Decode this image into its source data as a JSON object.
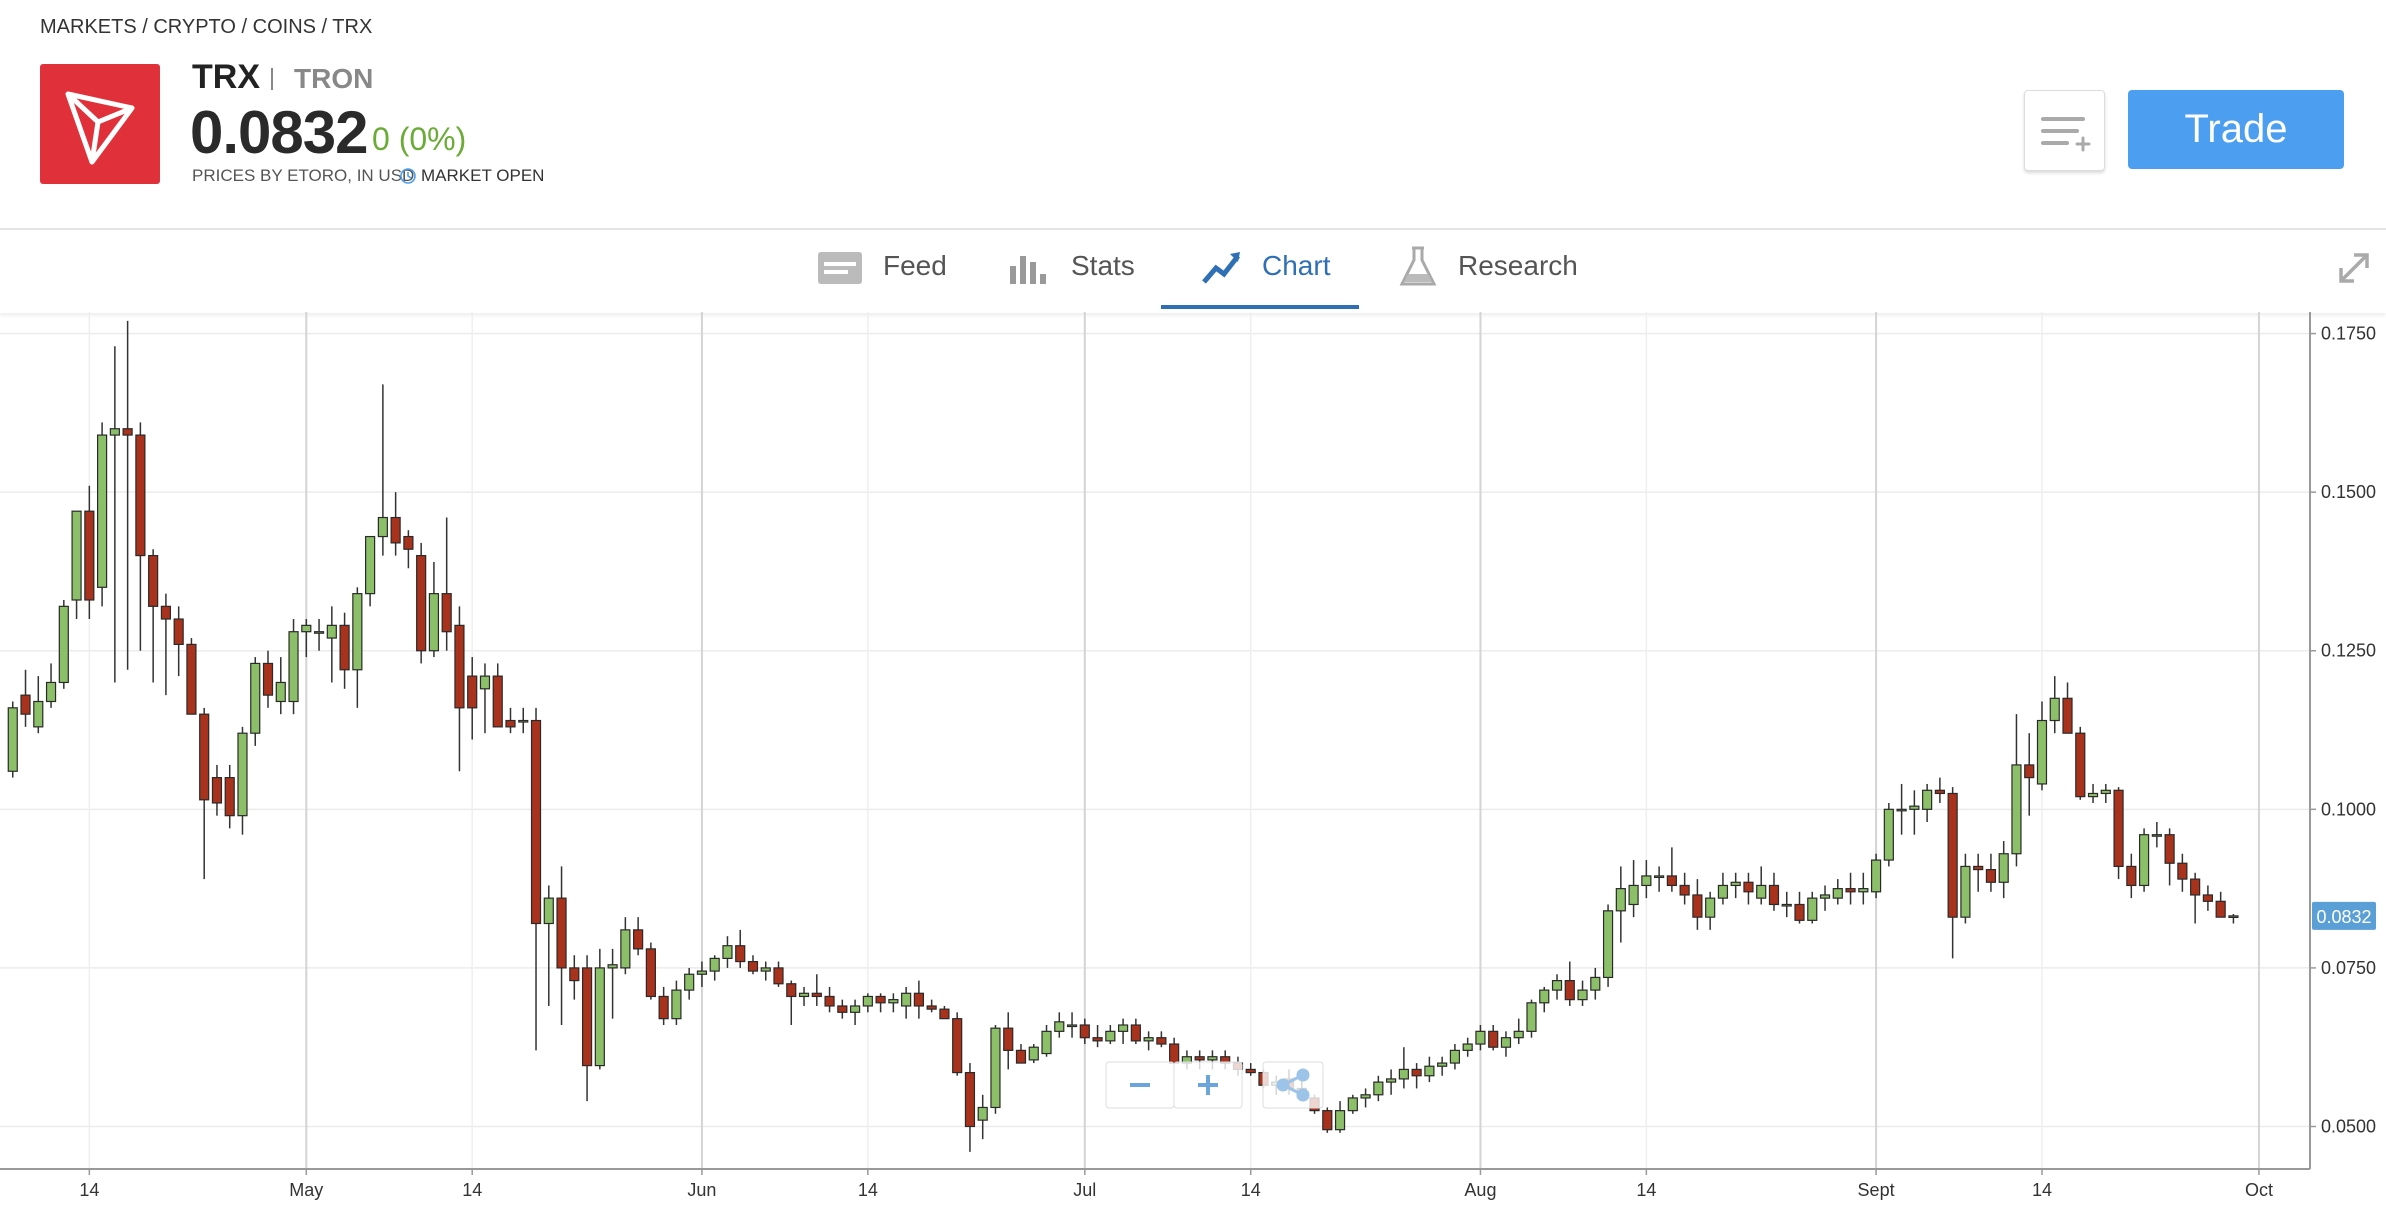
{
  "header": {
    "breadcrumb": "MARKETS / CRYPTO / COINS / TRX",
    "symbol": "TRX",
    "name": "TRON",
    "price": "0.0832",
    "change": "0 (0%)",
    "source": "PRICES BY ETORO, IN USD",
    "status": "MARKET OPEN",
    "trade_button": "Trade"
  },
  "tabs": [
    "Feed",
    "Stats",
    "Chart",
    "Research"
  ],
  "chart_data": {
    "type": "candlestick",
    "up_color": "#8cc068",
    "down_color": "#a8321c",
    "grid": true,
    "last_price": 0.0832,
    "ylim": [
      0.0433,
      0.1784
    ],
    "yticks": [
      {
        "value": 0.05,
        "label": "0.0500"
      },
      {
        "value": 0.075,
        "label": "0.0750"
      },
      {
        "value": 0.1,
        "label": "0.1000"
      },
      {
        "value": 0.125,
        "label": "0.1250"
      },
      {
        "value": 0.15,
        "label": "0.1500"
      },
      {
        "value": 0.175,
        "label": "0.1750"
      }
    ],
    "xlim": [
      "04-07",
      "10-05"
    ],
    "xticks": [
      {
        "value": "04-14",
        "label": "14"
      },
      {
        "value": "05-01",
        "label": "May"
      },
      {
        "value": "05-14",
        "label": "14"
      },
      {
        "value": "06-01",
        "label": "Jun"
      },
      {
        "value": "06-14",
        "label": "14"
      },
      {
        "value": "07-01",
        "label": "Jul"
      },
      {
        "value": "07-14",
        "label": "14"
      },
      {
        "value": "08-01",
        "label": "Aug"
      },
      {
        "value": "08-14",
        "label": "14"
      },
      {
        "value": "09-01",
        "label": "Sept"
      },
      {
        "value": "09-14",
        "label": "14"
      },
      {
        "value": "10-01",
        "label": "Oct"
      }
    ],
    "x": [
      "04-08",
      "04-09",
      "04-10",
      "04-11",
      "04-12",
      "04-13",
      "04-14",
      "04-15",
      "04-16",
      "04-17",
      "04-18",
      "04-19",
      "04-20",
      "04-21",
      "04-22",
      "04-23",
      "04-24",
      "04-25",
      "04-26",
      "04-27",
      "04-28",
      "04-29",
      "04-30",
      "05-01",
      "05-02",
      "05-03",
      "05-04",
      "05-05",
      "05-06",
      "05-07",
      "05-08",
      "05-09",
      "05-10",
      "05-11",
      "05-12",
      "05-13",
      "05-14",
      "05-15",
      "05-16",
      "05-17",
      "05-18",
      "05-19",
      "05-20",
      "05-21",
      "05-22",
      "05-23",
      "05-24",
      "05-25",
      "05-26",
      "05-27",
      "05-28",
      "05-29",
      "05-30",
      "05-31",
      "06-01",
      "06-02",
      "06-03",
      "06-04",
      "06-05",
      "06-06",
      "06-07",
      "06-08",
      "06-09",
      "06-10",
      "06-11",
      "06-12",
      "06-13",
      "06-14",
      "06-15",
      "06-16",
      "06-17",
      "06-18",
      "06-19",
      "06-20",
      "06-21",
      "06-22",
      "06-23",
      "06-24",
      "06-25",
      "06-26",
      "06-27",
      "06-28",
      "06-29",
      "06-30",
      "07-01",
      "07-02",
      "07-03",
      "07-04",
      "07-05",
      "07-06",
      "07-07",
      "07-08",
      "07-09",
      "07-10",
      "07-11",
      "07-12",
      "07-13",
      "07-14",
      "07-15",
      "07-16",
      "07-17",
      "07-18",
      "07-19",
      "07-20",
      "07-21",
      "07-22",
      "07-23",
      "07-24",
      "07-25",
      "07-26",
      "07-27",
      "07-28",
      "07-29",
      "07-30",
      "07-31",
      "08-01",
      "08-02",
      "08-03",
      "08-04",
      "08-05",
      "08-06",
      "08-07",
      "08-08",
      "08-09",
      "08-10",
      "08-11",
      "08-12",
      "08-13",
      "08-14",
      "08-15",
      "08-16",
      "08-17",
      "08-18",
      "08-19",
      "08-20",
      "08-21",
      "08-22",
      "08-23",
      "08-24",
      "08-25",
      "08-26",
      "08-27",
      "08-28",
      "08-29",
      "08-30",
      "08-31",
      "09-01",
      "09-02",
      "09-03",
      "09-04",
      "09-05",
      "09-06",
      "09-07",
      "09-08",
      "09-09",
      "09-10",
      "09-11",
      "09-12",
      "09-13",
      "09-14",
      "09-15",
      "09-16",
      "09-17",
      "09-18",
      "09-19",
      "09-20",
      "09-21",
      "09-22",
      "09-23",
      "09-24",
      "09-25",
      "09-26",
      "09-27",
      "09-28",
      "09-29"
    ],
    "open": [
      0.106,
      0.118,
      0.113,
      0.117,
      0.12,
      0.133,
      0.147,
      0.135,
      0.159,
      0.16,
      0.159,
      0.14,
      0.132,
      0.13,
      0.126,
      0.115,
      0.105,
      0.105,
      0.099,
      0.112,
      0.123,
      0.117,
      0.117,
      0.128,
      0.128,
      0.127,
      0.129,
      0.122,
      0.134,
      0.143,
      0.146,
      0.143,
      0.14,
      0.125,
      0.134,
      0.129,
      0.121,
      0.119,
      0.121,
      0.114,
      0.114,
      0.114,
      0.082,
      0.086,
      0.075,
      0.075,
      0.0596,
      0.075,
      0.075,
      0.081,
      0.078,
      0.0705,
      0.067,
      0.0715,
      0.074,
      0.0745,
      0.0765,
      0.0785,
      0.076,
      0.0745,
      0.075,
      0.0725,
      0.0705,
      0.071,
      0.0705,
      0.069,
      0.068,
      0.069,
      0.0705,
      0.0695,
      0.069,
      0.071,
      0.069,
      0.0685,
      0.067,
      0.0585,
      0.051,
      0.053,
      0.0655,
      0.062,
      0.0605,
      0.0615,
      0.065,
      0.066,
      0.066,
      0.064,
      0.0635,
      0.065,
      0.066,
      0.0635,
      0.064,
      0.063,
      0.06,
      0.061,
      0.0605,
      0.061,
      0.06,
      0.059,
      0.0585,
      0.0565,
      0.0575,
      0.056,
      0.0545,
      0.0525,
      0.0495,
      0.0525,
      0.0545,
      0.055,
      0.057,
      0.0575,
      0.059,
      0.058,
      0.0595,
      0.06,
      0.062,
      0.063,
      0.065,
      0.0625,
      0.064,
      0.065,
      0.0695,
      0.0715,
      0.073,
      0.07,
      0.0715,
      0.0735,
      0.084,
      0.085,
      0.088,
      0.0895,
      0.0895,
      0.088,
      0.0865,
      0.083,
      0.086,
      0.088,
      0.0885,
      0.086,
      0.088,
      0.085,
      0.085,
      0.0825,
      0.086,
      0.086,
      0.0875,
      0.087,
      0.087,
      0.092,
      0.1,
      0.1,
      0.1,
      0.103,
      0.1025,
      0.083,
      0.091,
      0.0905,
      0.0885,
      0.093,
      0.107,
      0.104,
      0.114,
      0.1175,
      0.112,
      0.102,
      0.1025,
      0.103,
      0.091,
      0.088,
      0.096,
      0.096,
      0.0915,
      0.089,
      0.0865,
      0.0855,
      0.083
    ],
    "high": [
      0.117,
      0.122,
      0.121,
      0.123,
      0.133,
      0.147,
      0.151,
      0.161,
      0.173,
      0.177,
      0.161,
      0.141,
      0.134,
      0.132,
      0.127,
      0.116,
      0.107,
      0.107,
      0.113,
      0.124,
      0.125,
      0.124,
      0.13,
      0.13,
      0.13,
      0.132,
      0.131,
      0.135,
      0.143,
      0.167,
      0.15,
      0.144,
      0.142,
      0.139,
      0.146,
      0.132,
      0.124,
      0.123,
      0.123,
      0.116,
      0.116,
      0.116,
      0.088,
      0.091,
      0.077,
      0.077,
      0.078,
      0.078,
      0.083,
      0.083,
      0.079,
      0.072,
      0.073,
      0.075,
      0.076,
      0.077,
      0.08,
      0.081,
      0.077,
      0.076,
      0.076,
      0.073,
      0.072,
      0.074,
      0.072,
      0.07,
      0.07,
      0.071,
      0.071,
      0.071,
      0.072,
      0.073,
      0.07,
      0.069,
      0.068,
      0.06,
      0.055,
      0.066,
      0.068,
      0.063,
      0.063,
      0.066,
      0.068,
      0.068,
      0.067,
      0.066,
      0.066,
      0.067,
      0.067,
      0.065,
      0.065,
      0.064,
      0.062,
      0.062,
      0.062,
      0.062,
      0.061,
      0.06,
      0.059,
      0.058,
      0.059,
      0.058,
      0.055,
      0.053,
      0.054,
      0.055,
      0.056,
      0.058,
      0.059,
      0.0625,
      0.06,
      0.061,
      0.061,
      0.063,
      0.064,
      0.066,
      0.066,
      0.065,
      0.067,
      0.07,
      0.072,
      0.074,
      0.076,
      0.073,
      0.075,
      0.085,
      0.091,
      0.092,
      0.092,
      0.091,
      0.094,
      0.09,
      0.089,
      0.087,
      0.09,
      0.09,
      0.09,
      0.091,
      0.09,
      0.087,
      0.087,
      0.087,
      0.088,
      0.089,
      0.09,
      0.09,
      0.093,
      0.101,
      0.104,
      0.103,
      0.104,
      0.105,
      0.1035,
      0.093,
      0.093,
      0.093,
      0.095,
      0.115,
      0.112,
      0.117,
      0.121,
      0.12,
      0.113,
      0.104,
      0.104,
      0.1035,
      0.093,
      0.097,
      0.098,
      0.097,
      0.093,
      0.09,
      0.088,
      0.087,
      0.0835
    ],
    "low": [
      0.105,
      0.113,
      0.112,
      0.116,
      0.119,
      0.13,
      0.13,
      0.132,
      0.12,
      0.122,
      0.125,
      0.12,
      0.118,
      0.121,
      0.115,
      0.089,
      0.099,
      0.097,
      0.096,
      0.11,
      0.116,
      0.115,
      0.115,
      0.124,
      0.125,
      0.12,
      0.119,
      0.116,
      0.132,
      0.14,
      0.14,
      0.138,
      0.123,
      0.124,
      0.125,
      0.106,
      0.111,
      0.112,
      0.113,
      0.112,
      0.112,
      0.062,
      0.069,
      0.066,
      0.07,
      0.054,
      0.059,
      0.067,
      0.074,
      0.077,
      0.07,
      0.066,
      0.066,
      0.07,
      0.072,
      0.073,
      0.075,
      0.075,
      0.074,
      0.073,
      0.072,
      0.066,
      0.069,
      0.069,
      0.068,
      0.067,
      0.066,
      0.068,
      0.068,
      0.068,
      0.067,
      0.067,
      0.068,
      0.067,
      0.058,
      0.046,
      0.048,
      0.052,
      0.059,
      0.06,
      0.06,
      0.061,
      0.064,
      0.064,
      0.063,
      0.0625,
      0.063,
      0.063,
      0.063,
      0.062,
      0.0625,
      0.06,
      0.059,
      0.059,
      0.059,
      0.059,
      0.058,
      0.058,
      0.056,
      0.055,
      0.055,
      0.054,
      0.052,
      0.049,
      0.049,
      0.052,
      0.053,
      0.054,
      0.055,
      0.056,
      0.056,
      0.057,
      0.058,
      0.059,
      0.061,
      0.062,
      0.062,
      0.061,
      0.063,
      0.064,
      0.068,
      0.07,
      0.069,
      0.069,
      0.07,
      0.072,
      0.079,
      0.083,
      0.086,
      0.087,
      0.087,
      0.085,
      0.081,
      0.081,
      0.085,
      0.086,
      0.085,
      0.085,
      0.084,
      0.083,
      0.082,
      0.082,
      0.084,
      0.085,
      0.085,
      0.085,
      0.086,
      0.091,
      0.096,
      0.096,
      0.098,
      0.101,
      0.0765,
      0.082,
      0.087,
      0.087,
      0.086,
      0.091,
      0.099,
      0.103,
      0.112,
      0.112,
      0.1015,
      0.101,
      0.101,
      0.089,
      0.086,
      0.087,
      0.094,
      0.088,
      0.087,
      0.082,
      0.084,
      0.083,
      0.082
    ],
    "close": [
      0.116,
      0.115,
      0.117,
      0.12,
      0.132,
      0.147,
      0.133,
      0.159,
      0.16,
      0.159,
      0.14,
      0.132,
      0.13,
      0.126,
      0.115,
      0.1015,
      0.101,
      0.099,
      0.112,
      0.123,
      0.118,
      0.12,
      0.128,
      0.129,
      0.128,
      0.129,
      0.122,
      0.134,
      0.143,
      0.146,
      0.142,
      0.141,
      0.125,
      0.134,
      0.128,
      0.116,
      0.116,
      0.121,
      0.113,
      0.113,
      0.114,
      0.082,
      0.086,
      0.075,
      0.073,
      0.0596,
      0.075,
      0.0755,
      0.081,
      0.078,
      0.0705,
      0.067,
      0.0715,
      0.074,
      0.0745,
      0.0765,
      0.0785,
      0.076,
      0.0745,
      0.075,
      0.0725,
      0.0705,
      0.071,
      0.0705,
      0.069,
      0.068,
      0.069,
      0.0705,
      0.0695,
      0.07,
      0.071,
      0.069,
      0.0685,
      0.067,
      0.0585,
      0.05,
      0.053,
      0.0655,
      0.062,
      0.06,
      0.0625,
      0.065,
      0.0665,
      0.066,
      0.064,
      0.0635,
      0.065,
      0.066,
      0.0635,
      0.064,
      0.063,
      0.06,
      0.061,
      0.0605,
      0.061,
      0.06,
      0.059,
      0.0585,
      0.0565,
      0.057,
      0.056,
      0.0545,
      0.0525,
      0.0495,
      0.0525,
      0.0545,
      0.055,
      0.057,
      0.0575,
      0.059,
      0.058,
      0.0595,
      0.06,
      0.062,
      0.063,
      0.065,
      0.0625,
      0.064,
      0.065,
      0.0695,
      0.0715,
      0.073,
      0.07,
      0.0715,
      0.0735,
      0.084,
      0.0875,
      0.088,
      0.0895,
      0.0895,
      0.088,
      0.0865,
      0.083,
      0.086,
      0.088,
      0.0885,
      0.087,
      0.088,
      0.085,
      0.085,
      0.0825,
      0.086,
      0.0865,
      0.0875,
      0.087,
      0.0875,
      0.092,
      0.1,
      0.1,
      0.1005,
      0.103,
      0.1025,
      0.083,
      0.091,
      0.0905,
      0.0885,
      0.093,
      0.107,
      0.105,
      0.114,
      0.1175,
      0.112,
      0.102,
      0.1025,
      0.103,
      0.091,
      0.088,
      0.096,
      0.096,
      0.0915,
      0.089,
      0.0865,
      0.0855,
      0.083,
      0.0832
    ]
  }
}
